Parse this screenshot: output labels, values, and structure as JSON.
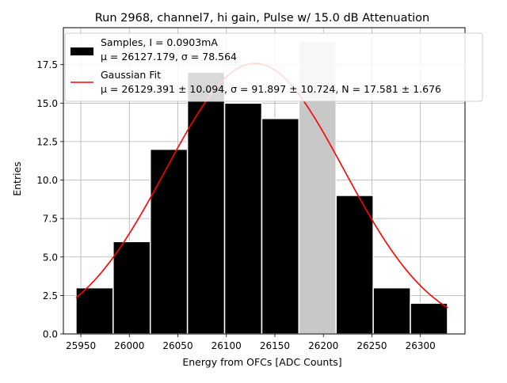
{
  "chart_data": {
    "type": "bar",
    "title": "Run 2968, channel7, hi gain, Pulse w/ 15.0 dB Attenuation",
    "xlabel": "Energy from OFCs [ADC Counts]",
    "ylabel": "Entries",
    "xlim": [
      25932,
      26346
    ],
    "ylim": [
      0,
      19.9
    ],
    "grid": true,
    "legend_position": "top-right",
    "xticks": [
      25950,
      26000,
      26050,
      26100,
      26150,
      26200,
      26250,
      26300
    ],
    "xtick_labels": [
      "25950",
      "26000",
      "26050",
      "26100",
      "26150",
      "26200",
      "26250",
      "26300"
    ],
    "yticks": [
      0,
      2.5,
      5,
      7.5,
      10,
      12.5,
      15,
      17.5
    ],
    "ytick_labels": [
      "0.0",
      "2.5",
      "5.0",
      "7.5",
      "10.0",
      "12.5",
      "15.0",
      "17.5"
    ],
    "bin_edges": [
      25945,
      25983.3,
      26021.6,
      26059.9,
      26098.2,
      26136.5,
      26174.8,
      26213.1,
      26251.4,
      26289.7,
      26328
    ],
    "values": [
      3,
      6,
      12,
      17,
      15,
      14,
      19,
      9,
      3,
      2
    ],
    "series": [
      {
        "name": "Samples, I = 0.0903mA",
        "name_line2": "μ = 26127.179, σ = 78.564",
        "kind": "histogram",
        "color": "#000000",
        "edge_color": "#ffffff"
      },
      {
        "name": "Gaussian Fit",
        "name_line2": "μ = 26129.391 ± 10.094, σ = 91.897 ± 10.724, N = 17.581 ± 1.676",
        "kind": "curve",
        "color": "#ff0000",
        "mu": 26129.391,
        "sigma": 91.897,
        "amplitude": 17.581,
        "x_range": [
          25945,
          26328
        ]
      }
    ],
    "colors": {
      "bar": "#000000",
      "bar_edge": "#ffffff",
      "fit": "#ff0000",
      "grid": "#b0b0b0",
      "highlight_bar": "#c8c8c8"
    },
    "highlighted_bar_index": 6
  }
}
